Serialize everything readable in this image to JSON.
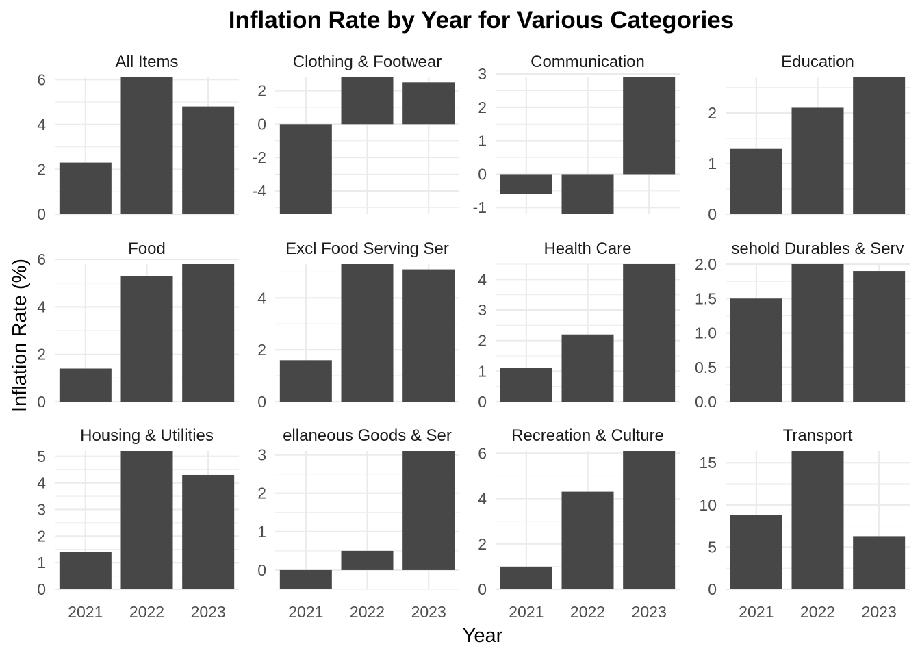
{
  "chart_data": {
    "type": "bar",
    "title": "Inflation Rate by Year for Various Categories",
    "xlabel": "Year",
    "ylabel": "Inflation Rate (%)",
    "categories": [
      "2021",
      "2022",
      "2023"
    ],
    "grid": true,
    "facets": [
      {
        "name": "All Items",
        "values": [
          2.3,
          6.1,
          4.8
        ],
        "ylim": [
          0,
          6.1
        ],
        "yticks": [
          0,
          2,
          4,
          6
        ],
        "ytick_labels": [
          "0",
          "2",
          "4",
          "6"
        ]
      },
      {
        "name": "Clothing & Footwear",
        "values": [
          -5.4,
          2.8,
          2.5
        ],
        "ylim": [
          -5.4,
          2.8
        ],
        "yticks": [
          -4,
          -2,
          0,
          2
        ],
        "ytick_labels": [
          "-4",
          "-2",
          "0",
          "2"
        ]
      },
      {
        "name": "Communication",
        "values": [
          -0.6,
          -1.2,
          2.9
        ],
        "ylim": [
          -1.2,
          2.9
        ],
        "yticks": [
          -1,
          0,
          1,
          2,
          3
        ],
        "ytick_labels": [
          "-1",
          "0",
          "1",
          "2",
          "3"
        ]
      },
      {
        "name": "Education",
        "values": [
          1.3,
          2.1,
          2.7
        ],
        "ylim": [
          0,
          2.7
        ],
        "yticks": [
          0,
          1,
          2
        ],
        "ytick_labels": [
          "0",
          "1",
          "2"
        ]
      },
      {
        "name": "Food",
        "values": [
          1.4,
          5.3,
          5.8
        ],
        "ylim": [
          0,
          5.8
        ],
        "yticks": [
          0,
          2,
          4,
          6
        ],
        "ytick_labels": [
          "0",
          "2",
          "4",
          "6"
        ]
      },
      {
        "name": "Excl Food Serving Ser",
        "values": [
          1.6,
          5.3,
          5.1
        ],
        "ylim": [
          0,
          5.3
        ],
        "yticks": [
          0,
          2,
          4
        ],
        "ytick_labels": [
          "0",
          "2",
          "4"
        ]
      },
      {
        "name": "Health Care",
        "values": [
          1.1,
          2.2,
          4.5
        ],
        "ylim": [
          0,
          4.5
        ],
        "yticks": [
          0,
          1,
          2,
          3,
          4
        ],
        "ytick_labels": [
          "0",
          "1",
          "2",
          "3",
          "4"
        ]
      },
      {
        "name": "sehold Durables & Serv",
        "values": [
          1.5,
          2.0,
          1.9
        ],
        "ylim": [
          0,
          2.0
        ],
        "yticks": [
          0,
          0.5,
          1,
          1.5,
          2
        ],
        "ytick_labels": [
          "0.0",
          "0.5",
          "1.0",
          "1.5",
          "2.0"
        ]
      },
      {
        "name": "Housing & Utilities",
        "values": [
          1.4,
          5.2,
          4.3
        ],
        "ylim": [
          0,
          5.2
        ],
        "yticks": [
          0,
          1,
          2,
          3,
          4,
          5
        ],
        "ytick_labels": [
          "0",
          "1",
          "2",
          "3",
          "4",
          "5"
        ]
      },
      {
        "name": "ellaneous Goods & Ser",
        "values": [
          -0.5,
          0.5,
          3.1
        ],
        "ylim": [
          -0.5,
          3.1
        ],
        "yticks": [
          0,
          1,
          2,
          3
        ],
        "ytick_labels": [
          "0",
          "1",
          "2",
          "3"
        ]
      },
      {
        "name": "Recreation & Culture",
        "values": [
          1.0,
          4.3,
          6.1
        ],
        "ylim": [
          0,
          6.1
        ],
        "yticks": [
          0,
          2,
          4,
          6
        ],
        "ytick_labels": [
          "0",
          "2",
          "4",
          "6"
        ]
      },
      {
        "name": "Transport",
        "values": [
          8.8,
          16.4,
          6.3
        ],
        "ylim": [
          0,
          16.4
        ],
        "yticks": [
          0,
          5,
          10,
          15
        ],
        "ytick_labels": [
          "0",
          "5",
          "10",
          "15"
        ]
      }
    ]
  }
}
